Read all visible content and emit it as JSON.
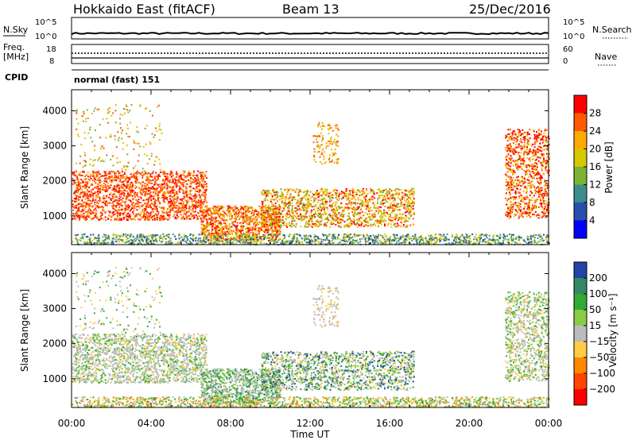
{
  "header": {
    "station": "Hokkaido East (fitACF)",
    "beam": "Beam 13",
    "date": "25/Dec/2016"
  },
  "top_panels": {
    "nsky_label": "N.Sky",
    "nsearch_label": "N.Search",
    "nsky_ticks": [
      "10^5",
      "10^0"
    ],
    "nsearch_ticks": [
      "10^5",
      "10^0"
    ],
    "freq_label_1": "Freq.",
    "freq_label_2": "[MHz]",
    "freq_ticks": [
      "18",
      "8"
    ],
    "nave_label": "Nave",
    "nave_ticks": [
      "60",
      "0"
    ],
    "cpid_label": "CPID",
    "cpid_value": "normal (fast) 151"
  },
  "chart_data": [
    {
      "type": "heatmap",
      "panel": "power",
      "ylabel": "Slant Range [km]",
      "xlabel": "",
      "ylim": [
        180,
        4600
      ],
      "xlim_hours": [
        0,
        24
      ],
      "yticks": [
        "4000",
        "3000",
        "2000",
        "1000"
      ],
      "colorbar_label": "Power [dB]",
      "colorbar_ticks": [
        "28",
        "24",
        "20",
        "16",
        "12",
        "8",
        "4"
      ],
      "colorbar_colors": [
        "#ff0000",
        "#ff5a00",
        "#ffaa00",
        "#d7c800",
        "#78b432",
        "#3c8c8c",
        "#2850aa",
        "#0000ff"
      ]
    },
    {
      "type": "heatmap",
      "panel": "velocity",
      "ylabel": "Slant Range [km]",
      "xlabel": "Time UT",
      "ylim": [
        180,
        4600
      ],
      "xlim_hours": [
        0,
        24
      ],
      "yticks": [
        "4000",
        "3000",
        "2000",
        "1000"
      ],
      "xticks": [
        "00:00",
        "04:00",
        "08:00",
        "12:00",
        "16:00",
        "20:00",
        "00:00"
      ],
      "colorbar_label": "Velocity [m s⁻¹]",
      "colorbar_ticks": [
        "200",
        "100",
        "50",
        "15",
        "−15",
        "−50",
        "−100",
        "−200"
      ],
      "colorbar_colors": [
        "#2244aa",
        "#338866",
        "#33aa33",
        "#88cc44",
        "#bbbbbb",
        "#ffcc44",
        "#ff8800",
        "#ff4400",
        "#ff0000"
      ]
    }
  ]
}
